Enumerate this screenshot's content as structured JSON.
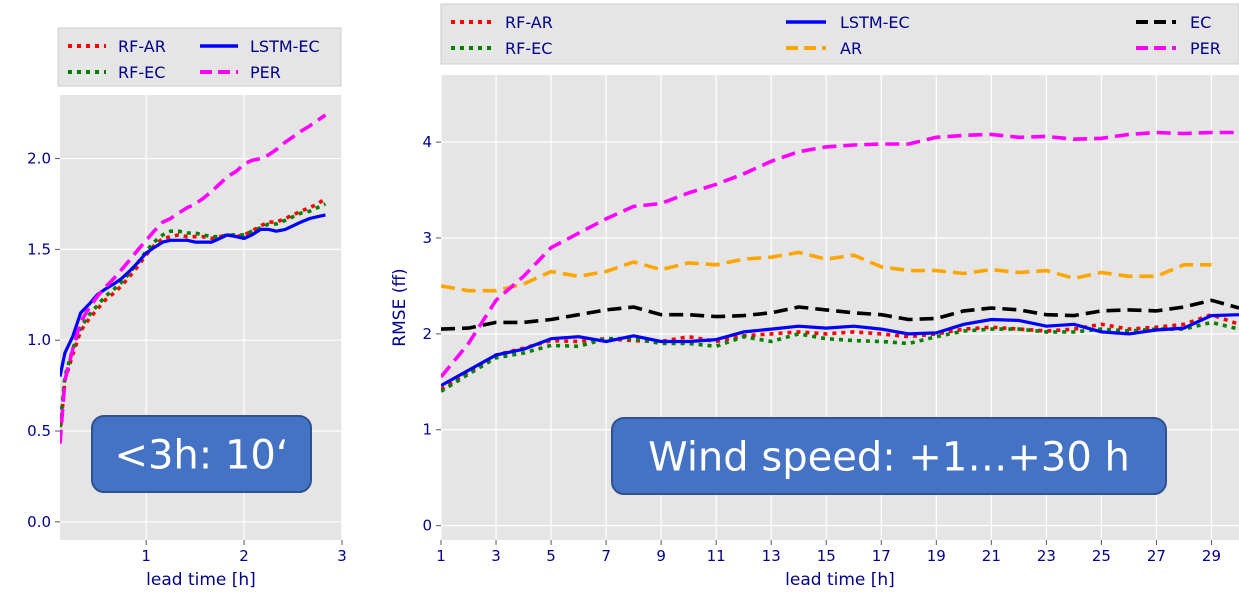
{
  "chart_data": [
    {
      "type": "line",
      "xlabel": "lead time [h]",
      "ylabel": "",
      "xlim": [
        0.12,
        3
      ],
      "ylim": [
        -0.1,
        2.35
      ],
      "x_ticks": [
        1,
        2,
        3
      ],
      "y_ticks": [
        0.0,
        0.5,
        1.0,
        1.5,
        2.0
      ],
      "y_tick_labels": [
        "0.0",
        "0.5",
        "1.0",
        "1.5",
        "2.0"
      ],
      "grid": true,
      "legend_placement": "top",
      "legend": {
        "rows": [
          [
            "RF-AR",
            "LSTM-EC"
          ],
          [
            "RF-EC",
            "PER"
          ]
        ]
      },
      "annotation": "<3h: 10‘",
      "series": [
        {
          "name": "RF-AR",
          "color": "#ff0000",
          "style": "dotted",
          "x": [
            0.12,
            0.17,
            0.25,
            0.33,
            0.42,
            0.5,
            0.58,
            0.67,
            0.75,
            0.83,
            0.92,
            1.0,
            1.08,
            1.17,
            1.25,
            1.33,
            1.42,
            1.5,
            1.58,
            1.67,
            1.75,
            1.83,
            1.92,
            2.0,
            2.08,
            2.17,
            2.25,
            2.33,
            2.42,
            2.5,
            2.58,
            2.67,
            2.75,
            2.83
          ],
          "values": [
            0.48,
            0.78,
            0.92,
            1.05,
            1.12,
            1.17,
            1.22,
            1.26,
            1.3,
            1.35,
            1.41,
            1.47,
            1.52,
            1.56,
            1.57,
            1.58,
            1.57,
            1.57,
            1.57,
            1.56,
            1.57,
            1.58,
            1.57,
            1.58,
            1.6,
            1.63,
            1.65,
            1.65,
            1.67,
            1.69,
            1.71,
            1.73,
            1.75,
            1.78
          ]
        },
        {
          "name": "RF-EC",
          "color": "#008000",
          "style": "dotted",
          "x": [
            0.12,
            0.17,
            0.25,
            0.33,
            0.42,
            0.5,
            0.58,
            0.67,
            0.75,
            0.83,
            0.92,
            1.0,
            1.08,
            1.17,
            1.25,
            1.33,
            1.42,
            1.5,
            1.58,
            1.67,
            1.75,
            1.83,
            1.92,
            2.0,
            2.08,
            2.17,
            2.25,
            2.33,
            2.42,
            2.5,
            2.58,
            2.67,
            2.75,
            2.83
          ],
          "values": [
            0.52,
            0.8,
            0.95,
            1.07,
            1.14,
            1.19,
            1.24,
            1.28,
            1.32,
            1.37,
            1.43,
            1.49,
            1.54,
            1.58,
            1.6,
            1.6,
            1.59,
            1.59,
            1.58,
            1.57,
            1.57,
            1.58,
            1.58,
            1.58,
            1.6,
            1.62,
            1.64,
            1.64,
            1.66,
            1.68,
            1.7,
            1.71,
            1.73,
            1.75
          ]
        },
        {
          "name": "LSTM-EC",
          "color": "#0000ff",
          "style": "solid",
          "x": [
            0.12,
            0.17,
            0.25,
            0.33,
            0.42,
            0.5,
            0.58,
            0.67,
            0.75,
            0.83,
            0.92,
            1.0,
            1.08,
            1.17,
            1.25,
            1.33,
            1.42,
            1.5,
            1.58,
            1.67,
            1.75,
            1.83,
            1.92,
            2.0,
            2.08,
            2.17,
            2.25,
            2.33,
            2.42,
            2.5,
            2.58,
            2.67,
            2.75,
            2.83
          ],
          "values": [
            0.8,
            0.93,
            1.02,
            1.15,
            1.2,
            1.25,
            1.28,
            1.31,
            1.34,
            1.38,
            1.43,
            1.48,
            1.51,
            1.54,
            1.55,
            1.55,
            1.55,
            1.54,
            1.54,
            1.54,
            1.56,
            1.58,
            1.57,
            1.56,
            1.58,
            1.61,
            1.61,
            1.6,
            1.61,
            1.63,
            1.65,
            1.67,
            1.68,
            1.69
          ]
        },
        {
          "name": "PER",
          "color": "#ff00ff",
          "style": "dashed",
          "x": [
            0.12,
            0.17,
            0.25,
            0.33,
            0.42,
            0.5,
            0.58,
            0.67,
            0.75,
            0.83,
            0.92,
            1.0,
            1.08,
            1.17,
            1.25,
            1.33,
            1.42,
            1.5,
            1.58,
            1.67,
            1.75,
            1.83,
            1.92,
            2.0,
            2.08,
            2.17,
            2.25,
            2.33,
            2.42,
            2.5,
            2.58,
            2.67,
            2.75,
            2.83
          ],
          "values": [
            0.43,
            0.78,
            0.95,
            1.1,
            1.18,
            1.24,
            1.29,
            1.34,
            1.39,
            1.44,
            1.5,
            1.55,
            1.6,
            1.65,
            1.67,
            1.7,
            1.73,
            1.75,
            1.78,
            1.82,
            1.86,
            1.9,
            1.93,
            1.97,
            1.99,
            2.0,
            2.02,
            2.05,
            2.09,
            2.12,
            2.15,
            2.18,
            2.21,
            2.24
          ]
        }
      ]
    },
    {
      "type": "line",
      "xlabel": "lead time [h]",
      "ylabel": "RMSE (ff)",
      "xlim": [
        1,
        30
      ],
      "ylim": [
        -0.15,
        4.7
      ],
      "x_ticks": [
        1,
        3,
        5,
        7,
        9,
        11,
        13,
        15,
        17,
        19,
        21,
        23,
        25,
        27,
        29
      ],
      "y_ticks": [
        0,
        1,
        2,
        3,
        4
      ],
      "y_tick_labels": [
        "0",
        "1",
        "2",
        "3",
        "4"
      ],
      "grid": true,
      "legend_placement": "top",
      "legend": {
        "rows": [
          [
            "RF-AR",
            "LSTM-EC",
            "EC"
          ],
          [
            "RF-EC",
            "AR",
            "PER"
          ]
        ]
      },
      "annotation": "Wind speed: +1…+30 h",
      "series": [
        {
          "name": "RF-AR",
          "color": "#ff0000",
          "style": "dotted",
          "x": [
            1,
            2,
            3,
            4,
            5,
            6,
            7,
            8,
            9,
            10,
            11,
            12,
            13,
            14,
            15,
            16,
            17,
            18,
            19,
            20,
            21,
            22,
            23,
            24,
            25,
            26,
            27,
            28,
            29,
            30
          ],
          "values": [
            1.42,
            1.6,
            1.78,
            1.85,
            1.93,
            1.92,
            1.95,
            1.93,
            1.92,
            1.97,
            1.92,
            1.98,
            2.0,
            2.02,
            2.0,
            2.02,
            2.0,
            1.97,
            2.0,
            2.05,
            2.07,
            2.05,
            2.03,
            2.05,
            2.1,
            2.05,
            2.07,
            2.1,
            2.2,
            2.1
          ]
        },
        {
          "name": "RF-EC",
          "color": "#008000",
          "style": "dotted",
          "x": [
            1,
            2,
            3,
            4,
            5,
            6,
            7,
            8,
            9,
            10,
            11,
            12,
            13,
            14,
            15,
            16,
            17,
            18,
            19,
            20,
            21,
            22,
            23,
            24,
            25,
            26,
            27,
            28,
            29,
            30
          ],
          "values": [
            1.4,
            1.58,
            1.75,
            1.8,
            1.88,
            1.87,
            1.95,
            1.95,
            1.9,
            1.9,
            1.87,
            1.97,
            1.92,
            2.0,
            1.95,
            1.93,
            1.92,
            1.9,
            1.97,
            2.03,
            2.05,
            2.05,
            2.02,
            2.02,
            2.05,
            2.03,
            2.05,
            2.05,
            2.12,
            2.05
          ]
        },
        {
          "name": "LSTM-EC",
          "color": "#0000ff",
          "style": "solid",
          "x": [
            1,
            2,
            3,
            4,
            5,
            6,
            7,
            8,
            9,
            10,
            11,
            12,
            13,
            14,
            15,
            16,
            17,
            18,
            19,
            20,
            21,
            22,
            23,
            24,
            25,
            26,
            27,
            28,
            29,
            30
          ],
          "values": [
            1.46,
            1.62,
            1.78,
            1.84,
            1.95,
            1.97,
            1.92,
            1.98,
            1.92,
            1.92,
            1.94,
            2.02,
            2.05,
            2.08,
            2.06,
            2.08,
            2.05,
            2.0,
            2.01,
            2.1,
            2.15,
            2.14,
            2.08,
            2.1,
            2.02,
            2.0,
            2.04,
            2.06,
            2.19,
            2.2
          ]
        },
        {
          "name": "EC",
          "color": "#000000",
          "style": "dashed",
          "x": [
            1,
            2,
            3,
            4,
            5,
            6,
            7,
            8,
            9,
            10,
            11,
            12,
            13,
            14,
            15,
            16,
            17,
            18,
            19,
            20,
            21,
            22,
            23,
            24,
            25,
            26,
            27,
            28,
            29,
            30
          ],
          "values": [
            2.05,
            2.06,
            2.12,
            2.12,
            2.15,
            2.2,
            2.25,
            2.28,
            2.2,
            2.2,
            2.18,
            2.19,
            2.22,
            2.28,
            2.25,
            2.22,
            2.2,
            2.15,
            2.16,
            2.24,
            2.27,
            2.25,
            2.2,
            2.19,
            2.24,
            2.25,
            2.24,
            2.28,
            2.35,
            2.27
          ]
        },
        {
          "name": "AR",
          "color": "#ffa500",
          "style": "dashed",
          "x": [
            1,
            2,
            3,
            4,
            5,
            6,
            7,
            8,
            9,
            10,
            11,
            12,
            13,
            14,
            15,
            16,
            17,
            18,
            19,
            20,
            21,
            22,
            23,
            24,
            25,
            26,
            27,
            28,
            29
          ],
          "values": [
            2.5,
            2.45,
            2.45,
            2.52,
            2.65,
            2.6,
            2.65,
            2.75,
            2.67,
            2.74,
            2.72,
            2.78,
            2.8,
            2.85,
            2.78,
            2.82,
            2.7,
            2.66,
            2.66,
            2.63,
            2.67,
            2.64,
            2.66,
            2.58,
            2.64,
            2.6,
            2.6,
            2.72,
            2.72
          ]
        },
        {
          "name": "PER",
          "color": "#ff00ff",
          "style": "dashed",
          "x": [
            1,
            2,
            3,
            4,
            5,
            6,
            7,
            8,
            9,
            10,
            11,
            12,
            13,
            14,
            15,
            16,
            17,
            18,
            19,
            20,
            21,
            22,
            23,
            24,
            25,
            26,
            27,
            28,
            29,
            30
          ],
          "values": [
            1.55,
            1.9,
            2.35,
            2.6,
            2.9,
            3.05,
            3.2,
            3.33,
            3.36,
            3.47,
            3.56,
            3.67,
            3.8,
            3.9,
            3.95,
            3.97,
            3.98,
            3.98,
            4.05,
            4.07,
            4.08,
            4.05,
            4.06,
            4.03,
            4.04,
            4.08,
            4.1,
            4.09,
            4.1,
            4.1
          ]
        }
      ]
    }
  ]
}
